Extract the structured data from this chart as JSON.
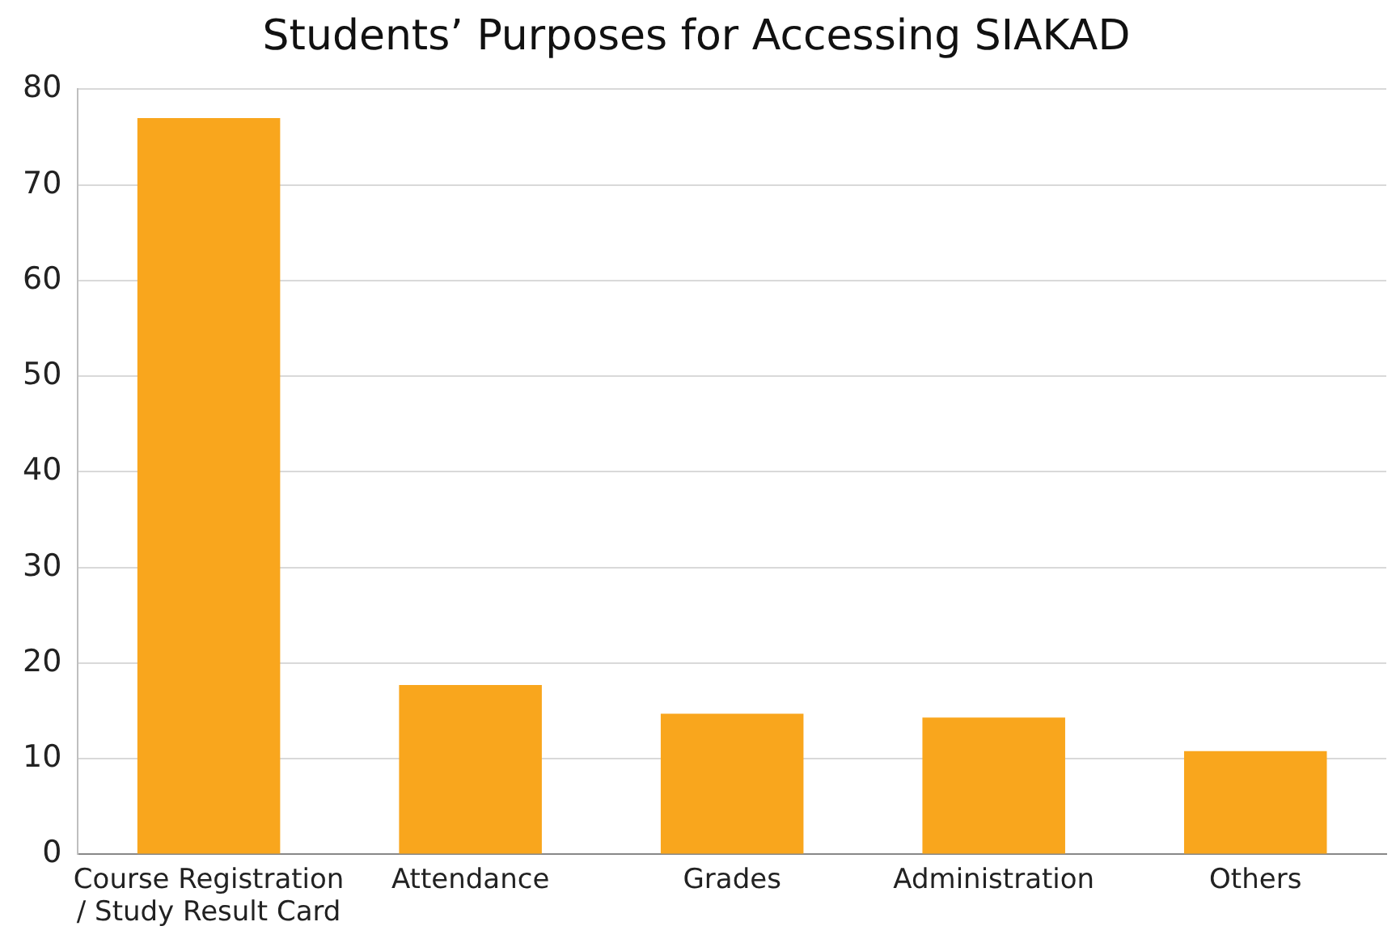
{
  "chart_data": {
    "type": "bar",
    "title": "Students’ Purposes for Accessing SIAKAD",
    "categories": [
      "Course Registration / Study Result Card",
      "Attendance",
      "Grades",
      "Administration",
      "Others"
    ],
    "values": [
      77,
      17.7,
      14.7,
      14.3,
      10.8
    ],
    "color": "#f9a61d",
    "ylim": [
      0,
      80
    ],
    "yticks": [
      0,
      10,
      20,
      30,
      40,
      50,
      60,
      70,
      80
    ],
    "grid": "y",
    "legend": false
  }
}
